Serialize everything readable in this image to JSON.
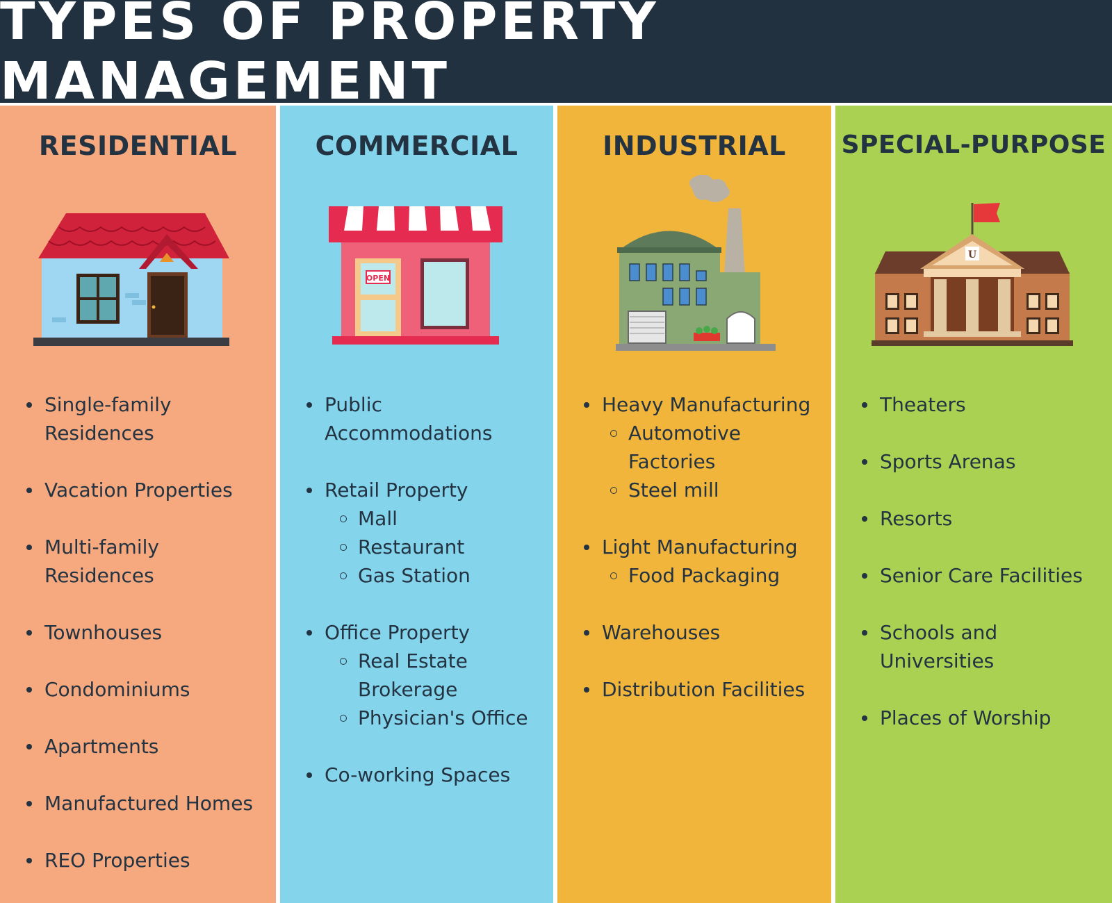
{
  "title": "TYPES OF PROPERTY MANAGEMENT",
  "colors": {
    "header_bg": "#22313f",
    "text": "#243341",
    "residential": "#f6a97e",
    "commercial": "#84d4ec",
    "industrial": "#f1b53b",
    "special_purpose": "#aad152"
  },
  "columns": [
    {
      "heading": "RESIDENTIAL",
      "icon": "house-icon",
      "items": [
        {
          "label": "Single-family Residences"
        },
        {
          "label": "Vacation Properties"
        },
        {
          "label": "Multi-family Residences"
        },
        {
          "label": "Townhouses"
        },
        {
          "label": "Condominiums"
        },
        {
          "label": "Apartments"
        },
        {
          "label": "Manufactured Homes"
        },
        {
          "label": "REO Properties"
        }
      ]
    },
    {
      "heading": "COMMERCIAL",
      "icon": "storefront-icon",
      "icon_sign": "OPEN",
      "items": [
        {
          "label": "Public Accommodations"
        },
        {
          "label": "Retail Property",
          "sub": [
            "Mall",
            "Restaurant",
            "Gas Station"
          ]
        },
        {
          "label": "Office Property",
          "sub": [
            "Real Estate Brokerage",
            "Physician's Office"
          ]
        },
        {
          "label": "Co-working Spaces"
        }
      ]
    },
    {
      "heading": "INDUSTRIAL",
      "icon": "factory-icon",
      "items": [
        {
          "label": "Heavy Manufacturing",
          "sub": [
            "Automotive Factories",
            "Steel mill"
          ]
        },
        {
          "label": "Light Manufacturing",
          "sub": [
            "Food Packaging"
          ]
        },
        {
          "label": "Warehouses"
        },
        {
          "label": "Distribution Facilities"
        }
      ]
    },
    {
      "heading": "SPECIAL-PURPOSE",
      "icon": "university-icon",
      "items": [
        {
          "label": "Theaters"
        },
        {
          "label": "Sports Arenas"
        },
        {
          "label": "Resorts"
        },
        {
          "label": "Senior Care Facilities"
        },
        {
          "label": "Schools and Universities"
        },
        {
          "label": "Places of Worship"
        }
      ]
    }
  ]
}
